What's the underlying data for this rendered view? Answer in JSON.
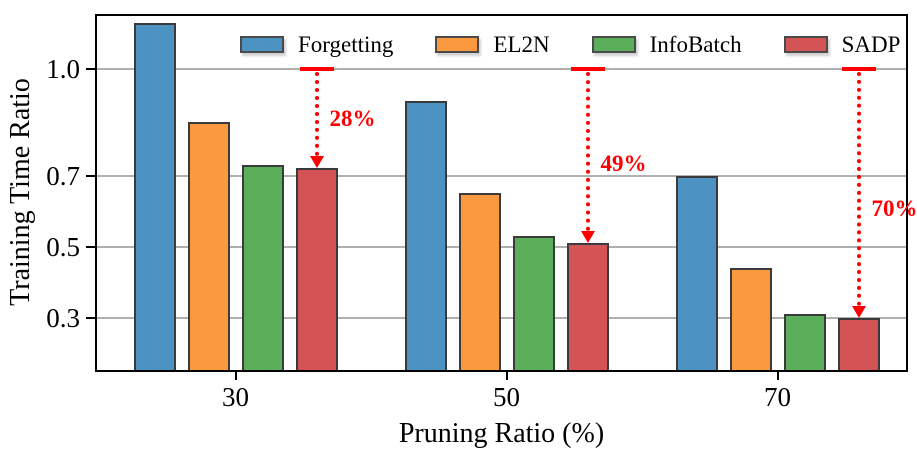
{
  "chart_data": {
    "type": "bar",
    "title": "",
    "xlabel": "Pruning Ratio (%)",
    "ylabel": "Training Time Ratio",
    "categories": [
      "30",
      "50",
      "70"
    ],
    "series": [
      {
        "name": "Forgetting",
        "color": "#4C92C3",
        "values": [
          1.13,
          0.91,
          0.7
        ]
      },
      {
        "name": "EL2N",
        "color": "#FB9941",
        "values": [
          0.85,
          0.65,
          0.44
        ]
      },
      {
        "name": "InfoBatch",
        "color": "#5BAF5B",
        "values": [
          0.73,
          0.53,
          0.31
        ]
      },
      {
        "name": "SADP",
        "color": "#D45456",
        "values": [
          0.72,
          0.51,
          0.3
        ]
      }
    ],
    "bar_edge_color": "#3a3a3a",
    "ylim": [
      0.147,
      1.155
    ],
    "yticks": [
      {
        "label": "1.0",
        "value": 1.0
      },
      {
        "label": "0.7",
        "value": 0.7
      },
      {
        "label": "0.5",
        "value": 0.5
      },
      {
        "label": "0.3",
        "value": 0.3
      }
    ],
    "grid": "horizontal",
    "gridline_color": "#b0b0b0",
    "legend_position": "top-inside",
    "annotation_color": "#ff0000",
    "annotations": [
      {
        "label": "28%",
        "group_index": 0,
        "series": "SADP",
        "from_value": 1.0,
        "to_value": 0.72
      },
      {
        "label": "49%",
        "group_index": 1,
        "series": "SADP",
        "from_value": 1.0,
        "to_value": 0.51
      },
      {
        "label": "70%",
        "group_index": 2,
        "series": "SADP",
        "from_value": 1.0,
        "to_value": 0.3
      }
    ]
  }
}
